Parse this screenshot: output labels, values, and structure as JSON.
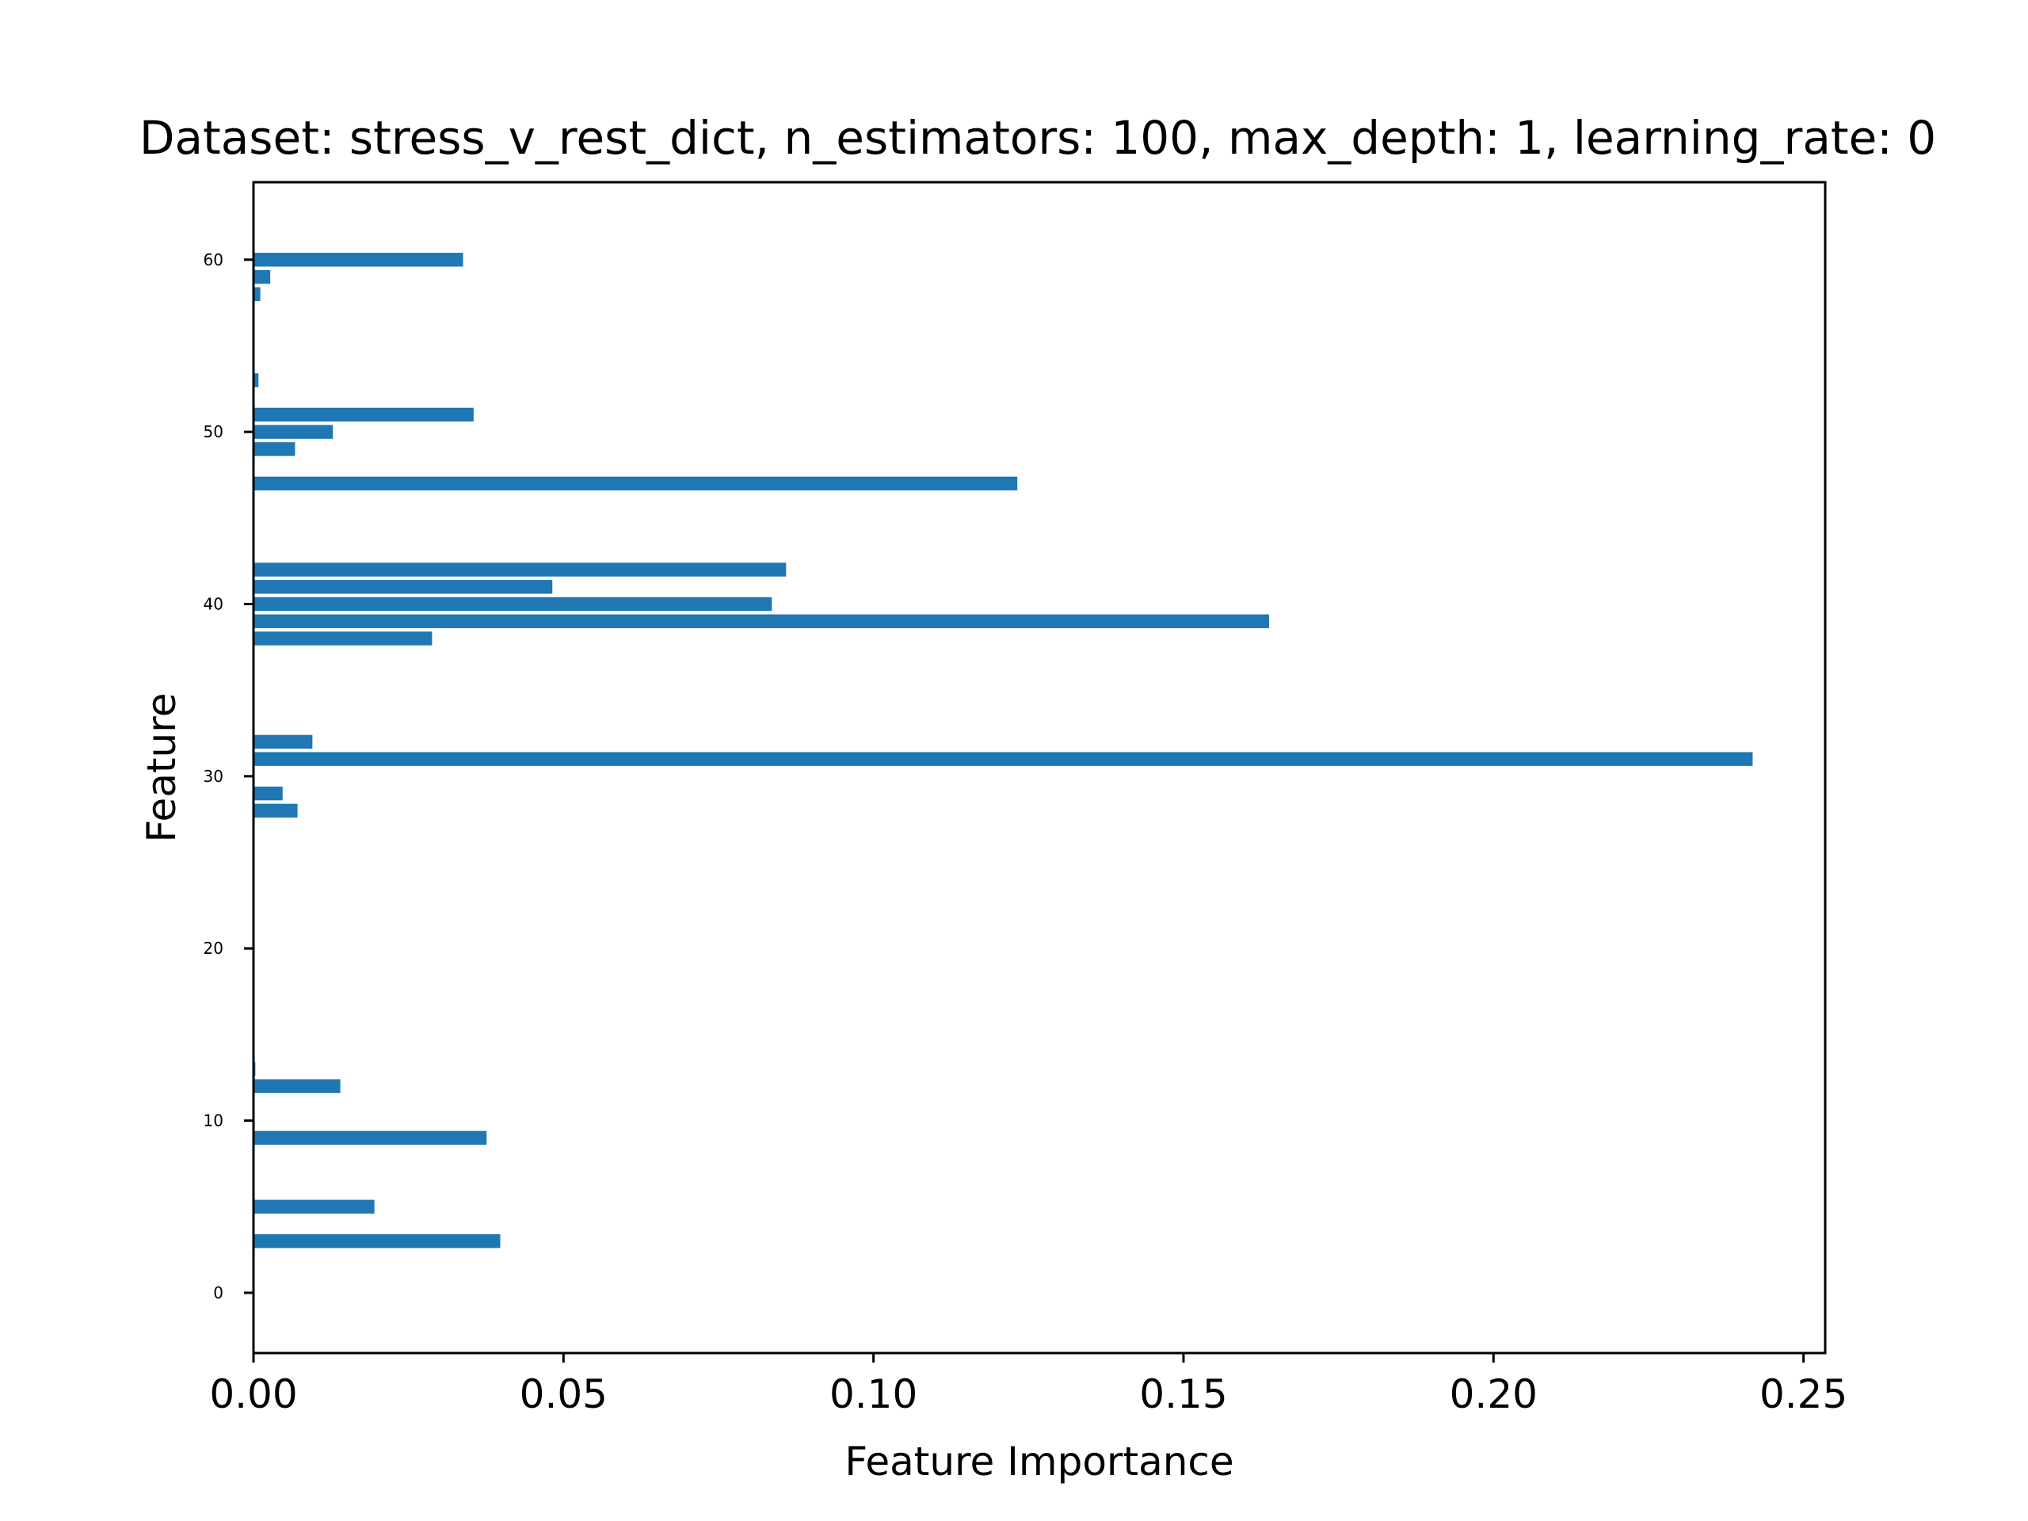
{
  "chart_data": {
    "type": "bar",
    "orientation": "horizontal",
    "title": "Dataset: stress_v_rest_dict, n_estimators: 100, max_depth: 1, learning_rate: 0",
    "xlabel": "Feature Importance",
    "ylabel": "Feature",
    "xlim": [
      0.0,
      0.2535
    ],
    "ylim": [
      -3.5,
      64.5
    ],
    "xticks": [
      0.0,
      0.05,
      0.1,
      0.15,
      0.2,
      0.25
    ],
    "xtick_labels": [
      "0.00",
      "0.05",
      "0.10",
      "0.15",
      "0.20",
      "0.25"
    ],
    "yticks": [
      0,
      10,
      20,
      30,
      40,
      50,
      60
    ],
    "ytick_labels": [
      "0",
      "10",
      "20",
      "30",
      "40",
      "50",
      "60"
    ],
    "grid": false,
    "bar_color": "#1f77b4",
    "bars": [
      {
        "feature": 3,
        "importance": 0.0398
      },
      {
        "feature": 5,
        "importance": 0.0195
      },
      {
        "feature": 9,
        "importance": 0.0376
      },
      {
        "feature": 12,
        "importance": 0.014
      },
      {
        "feature": 13,
        "importance": 0.0003
      },
      {
        "feature": 28,
        "importance": 0.0071
      },
      {
        "feature": 29,
        "importance": 0.0047
      },
      {
        "feature": 31,
        "importance": 0.2418
      },
      {
        "feature": 32,
        "importance": 0.0095
      },
      {
        "feature": 38,
        "importance": 0.0288
      },
      {
        "feature": 39,
        "importance": 0.1638
      },
      {
        "feature": 40,
        "importance": 0.0836
      },
      {
        "feature": 41,
        "importance": 0.0482
      },
      {
        "feature": 42,
        "importance": 0.0859
      },
      {
        "feature": 47,
        "importance": 0.1232
      },
      {
        "feature": 49,
        "importance": 0.0067
      },
      {
        "feature": 50,
        "importance": 0.0128
      },
      {
        "feature": 51,
        "importance": 0.0355
      },
      {
        "feature": 53,
        "importance": 0.0008
      },
      {
        "feature": 58,
        "importance": 0.0011
      },
      {
        "feature": 59,
        "importance": 0.0027
      },
      {
        "feature": 60,
        "importance": 0.0338
      }
    ]
  }
}
